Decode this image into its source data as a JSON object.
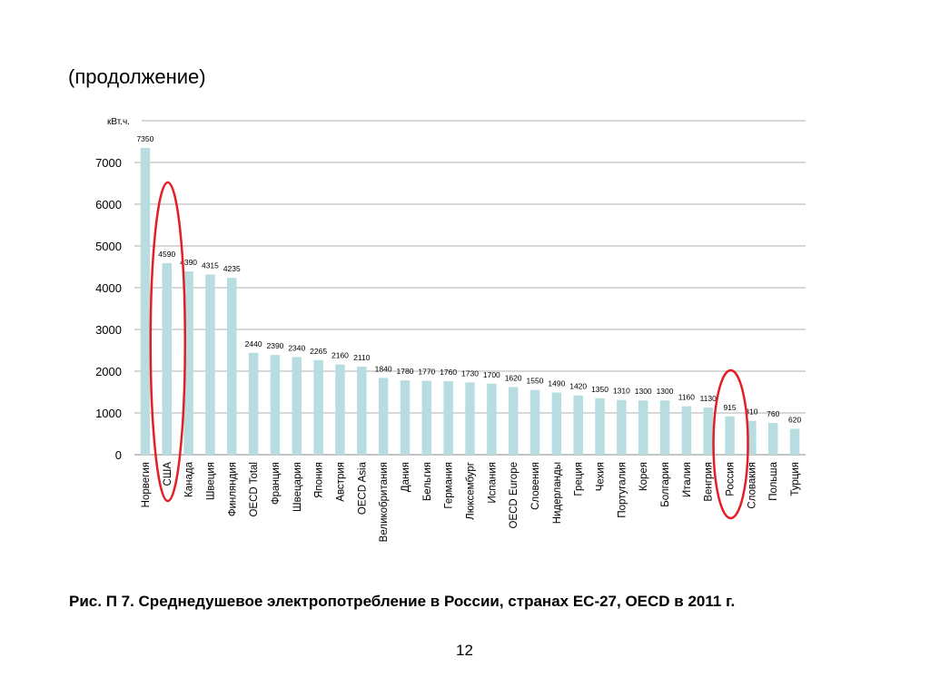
{
  "header": {
    "title": "(продолжение)"
  },
  "caption": "Рис. П 7. Среднедушевое электропотребление в России, странах ЕС-27, OECD в 2011 г.",
  "page_number": "12",
  "chart_data": {
    "type": "bar",
    "ylabel": "кВт.ч.",
    "ylim": [
      0,
      8000
    ],
    "yticks": [
      0,
      1000,
      2000,
      3000,
      4000,
      5000,
      6000,
      7000
    ],
    "grid": true,
    "bar_color": "#b7dde0",
    "highlight_color": "#e31e24",
    "highlighted": [
      "США",
      "Россия"
    ],
    "categories": [
      "Норвегия",
      "США",
      "Канада",
      "Швеция",
      "Финляндия",
      "OECD Total",
      "Франция",
      "Швецария",
      "Япония",
      "Австрия",
      "OECD Asia",
      "Великобритания",
      "Дания",
      "Бельгия",
      "Германия",
      "Люксембург",
      "Испания",
      "OECD Europe",
      "Словения",
      "Нидерланды",
      "Греция",
      "Чехия",
      "Португалия",
      "Корея",
      "Болгария",
      "Италия",
      "Венгрия",
      "Россия",
      "Словакия",
      "Польша",
      "Турция"
    ],
    "values": [
      7350,
      4590,
      4390,
      4315,
      4235,
      2440,
      2390,
      2340,
      2265,
      2160,
      2110,
      1840,
      1780,
      1770,
      1760,
      1730,
      1700,
      1620,
      1550,
      1490,
      1420,
      1350,
      1310,
      1300,
      1300,
      1160,
      1130,
      915,
      810,
      760,
      620
    ]
  }
}
